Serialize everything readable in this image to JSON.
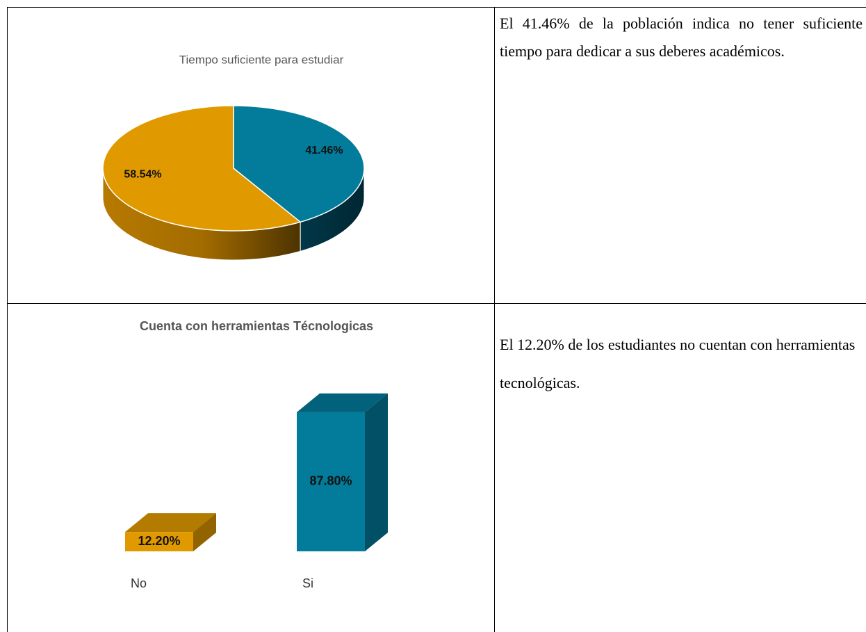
{
  "chart_data": [
    {
      "type": "pie",
      "title": "Tiempo suficiente para estudiar",
      "values": [
        41.46,
        58.54
      ],
      "value_labels": [
        "41.46%",
        "58.54%"
      ],
      "colors": [
        "#037b9b",
        "#e09a00"
      ]
    },
    {
      "type": "bar",
      "title": "Cuenta con herramientas Técnologicas",
      "categories": [
        "No",
        "Si"
      ],
      "values": [
        12.2,
        87.8
      ],
      "value_labels": [
        "12.20%",
        "87.80%"
      ],
      "colors": [
        "#e09a00",
        "#037b9b"
      ]
    }
  ],
  "descriptions": [
    "El 41.46% de la población indica no tener suficiente tiempo para dedicar a sus deberes académicos.",
    "El 12.20% de los estudiantes no cuentan con herramientas tecnológicas."
  ]
}
